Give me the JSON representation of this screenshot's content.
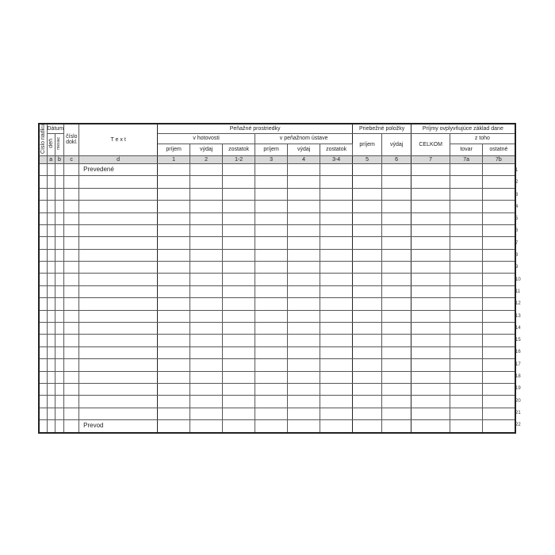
{
  "header": {
    "row_number": "Číslo riadku",
    "date": "Dátum",
    "day": "deň",
    "month": "mesiac",
    "doc_number": "číslo dokl.",
    "text": "T e x t",
    "cash_funds": "Peňažné prostriedky",
    "in_cash": "v hotovosti",
    "in_bank": "v peňažnom ústave",
    "income": "príjem",
    "expense": "výdaj",
    "balance": "zostatok",
    "transit": "Priebežné položky",
    "taxable_income": "Príjmy ovplyvňujúce základ dane",
    "total": "CELKOM",
    "of_which": "z toho",
    "goods": "tovar",
    "other": "ostatné"
  },
  "index_row": [
    "a",
    "b",
    "c",
    "d",
    "1",
    "2",
    "1-2",
    "3",
    "4",
    "3-4",
    "5",
    "6",
    "7",
    "7a",
    "7b"
  ],
  "rows": {
    "first_text": "Prevedené",
    "last_text": "Prevod",
    "numbers": [
      "1",
      "2",
      "3",
      "4",
      "5",
      "6",
      "7",
      "8",
      "9",
      "10",
      "11",
      "12",
      "13",
      "14",
      "15",
      "16",
      "17",
      "18",
      "19",
      "20",
      "21",
      "22"
    ]
  }
}
